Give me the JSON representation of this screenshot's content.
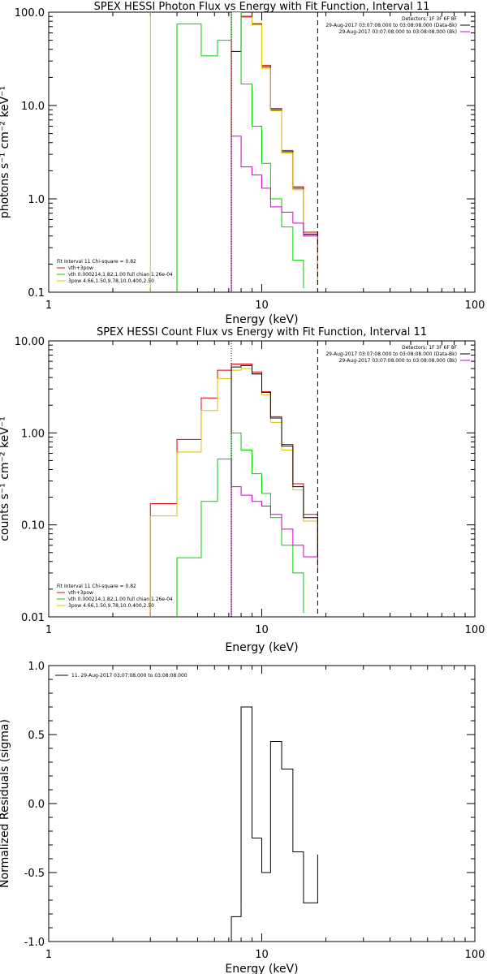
{
  "chart_data": [
    {
      "type": "line",
      "title": "SPEX HESSI Photon Flux vs Energy with Fit Function, Interval 11",
      "xlabel": "Energy (keV)",
      "ylabel": "photons s⁻¹ cm⁻² keV⁻¹",
      "xscale": "log",
      "yscale": "log",
      "xlim": [
        1,
        100
      ],
      "ylim": [
        0.1,
        100
      ],
      "xticks": [
        {
          "v": 1,
          "label": "1"
        },
        {
          "v": 10,
          "label": "10"
        },
        {
          "v": 100,
          "label": "100"
        }
      ],
      "yticks": [
        {
          "v": 0.1,
          "label": "0.1"
        },
        {
          "v": 1,
          "label": "1.0"
        },
        {
          "v": 10,
          "label": "10.0"
        },
        {
          "v": 100,
          "label": "100.0"
        }
      ],
      "vlines": [
        {
          "x": 7.2,
          "style": "dotted",
          "color": "#000000"
        },
        {
          "x": 18.3,
          "style": "dashed",
          "color": "#000000"
        }
      ],
      "legend_top": {
        "lines": [
          {
            "text": "Detectors: 1F 3F 6F 8F",
            "color": ""
          },
          {
            "text": "29-Aug-2017 03:07:08.000 to 03:08:08.000 (Data-Bk)",
            "color": "#000000"
          },
          {
            "text": "29-Aug-2017 03:07:08.000 to 03:08:08.000 (Bk)",
            "color": "#d000d0"
          }
        ]
      },
      "legend_bottom": {
        "lines": [
          {
            "text": "Fit Interval 11   Chi-square = 0.82",
            "color": ""
          },
          {
            "text": "vth+3pow",
            "color": "#e00000"
          },
          {
            "text": "vth 0.000214,1.82,1.00   full chian 1.26e-04",
            "color": "#00d000"
          },
          {
            "text": "3pow 4.66,1.50,9.78,10.0,400,2.50",
            "color": "#e0c000"
          }
        ]
      },
      "series": [
        {
          "color": "#000000",
          "edges": [
            7.2,
            8.0,
            9.0,
            10.0,
            11.0,
            12.4,
            14.0,
            15.7,
            18.3
          ],
          "values": [
            38,
            90,
            75,
            26,
            9.0,
            3.2,
            1.3,
            0.42,
            0.13
          ]
        },
        {
          "color": "#e00000",
          "edges": [
            7.2,
            8.0,
            9.0,
            10.0,
            11.0,
            12.4,
            14.0,
            15.7,
            18.3
          ],
          "values": [
            100,
            90,
            75,
            27,
            9.3,
            3.3,
            1.35,
            0.44,
            0.14
          ]
        },
        {
          "color": "#e0c000",
          "edges": [
            3.0,
            7.2,
            8.0,
            9.0,
            10.0,
            11.0,
            12.4,
            14.0,
            15.7,
            18.3
          ],
          "values": [
            200,
            100,
            88,
            73,
            25,
            8.8,
            3.1,
            1.25,
            0.41,
            0.12
          ]
        },
        {
          "color": "#00d000",
          "edges": [
            4.0,
            5.2,
            6.2,
            7.2,
            8.0,
            9.0,
            10.0,
            11.0,
            12.4,
            14.0,
            15.7
          ],
          "values": [
            75,
            34,
            50,
            120,
            17,
            6.0,
            2.4,
            1.0,
            0.5,
            0.22,
            0.11
          ]
        },
        {
          "color": "#d000d0",
          "edges": [
            7.2,
            8.0,
            9.0,
            10.0,
            11.0,
            12.4,
            14.0,
            15.7,
            18.3
          ],
          "values": [
            4.7,
            2.2,
            1.8,
            1.3,
            0.82,
            0.72,
            0.55,
            0.4,
            0.3
          ]
        }
      ]
    },
    {
      "type": "line",
      "title": "SPEX HESSI Count Flux vs Energy with Fit Function, Interval 11",
      "xlabel": "Energy (keV)",
      "ylabel": "counts s⁻¹ cm⁻² keV⁻¹",
      "xscale": "log",
      "yscale": "log",
      "xlim": [
        1,
        100
      ],
      "ylim": [
        0.01,
        10
      ],
      "xticks": [
        {
          "v": 1,
          "label": "1"
        },
        {
          "v": 10,
          "label": "10"
        },
        {
          "v": 100,
          "label": "100"
        }
      ],
      "yticks": [
        {
          "v": 0.01,
          "label": "0.01"
        },
        {
          "v": 0.1,
          "label": "0.10"
        },
        {
          "v": 1,
          "label": "1.00"
        },
        {
          "v": 10,
          "label": "10.00"
        }
      ],
      "vlines": [
        {
          "x": 7.2,
          "style": "dotted",
          "color": "#000000"
        },
        {
          "x": 18.3,
          "style": "dashed",
          "color": "#000000"
        }
      ],
      "legend_top": {
        "lines": [
          {
            "text": "Detectors: 1F 3F 6F 8F",
            "color": ""
          },
          {
            "text": "29-Aug-2017 03:07:08.000 to 03:08:08.000 (Data-Bk)",
            "color": "#000000"
          },
          {
            "text": "29-Aug-2017 03:07:08.000 to 03:08:08.000 (Bk)",
            "color": "#d000d0"
          }
        ]
      },
      "legend_bottom": {
        "lines": [
          {
            "text": "Fit Interval 11   Chi-square = 0.82",
            "color": ""
          },
          {
            "text": "vth+3pow",
            "color": "#e00000"
          },
          {
            "text": "vth 0.000214,1.82,1.00   full chian 1.26e-04",
            "color": "#00d000"
          },
          {
            "text": "3pow 4.66,1.50,9.78,10.0,400,2.50",
            "color": "#e0c000"
          }
        ]
      },
      "series": [
        {
          "color": "#e00000",
          "edges": [
            3.0,
            4.0,
            5.2,
            6.2,
            7.2,
            8.0,
            9.0,
            10.0,
            11.0,
            12.4,
            14.0,
            15.7,
            18.3
          ],
          "values": [
            0.17,
            0.85,
            2.4,
            4.8,
            5.6,
            5.6,
            4.6,
            2.8,
            1.5,
            0.75,
            0.28,
            0.13,
            0.045
          ]
        },
        {
          "color": "#e0c000",
          "edges": [
            3.0,
            4.0,
            5.2,
            6.2,
            7.2,
            8.0,
            9.0,
            10.0,
            11.0,
            12.4,
            14.0,
            15.7,
            18.3
          ],
          "values": [
            0.125,
            0.62,
            1.75,
            3.9,
            4.8,
            5.0,
            4.3,
            2.6,
            1.3,
            0.65,
            0.24,
            0.11,
            0.038
          ]
        },
        {
          "color": "#000000",
          "edges": [
            7.2,
            8.0,
            9.0,
            10.0,
            11.0,
            12.4,
            14.0,
            15.7,
            18.3
          ],
          "values": [
            5.2,
            5.4,
            4.4,
            2.75,
            1.45,
            0.72,
            0.26,
            0.12,
            0.04
          ]
        },
        {
          "color": "#00d000",
          "edges": [
            4.0,
            5.2,
            6.2,
            7.2,
            8.0,
            9.0,
            10.0,
            11.0,
            12.4,
            14.0,
            15.7
          ],
          "values": [
            0.044,
            0.18,
            0.52,
            1.0,
            0.65,
            0.36,
            0.22,
            0.12,
            0.06,
            0.03,
            0.011
          ]
        },
        {
          "color": "#d000d0",
          "edges": [
            7.2,
            8.0,
            9.0,
            10.0,
            11.0,
            12.4,
            14.0,
            15.7,
            18.3
          ],
          "values": [
            0.26,
            0.21,
            0.18,
            0.16,
            0.13,
            0.09,
            0.06,
            0.045,
            0.03
          ]
        }
      ]
    },
    {
      "type": "line",
      "title": "",
      "xlabel": "Energy (keV)",
      "ylabel": "Normalized Residuals (sigma)",
      "xscale": "log",
      "yscale": "linear",
      "xlim": [
        1,
        100
      ],
      "ylim": [
        -1.0,
        1.0
      ],
      "xticks": [
        {
          "v": 1,
          "label": "1"
        },
        {
          "v": 10,
          "label": "10"
        },
        {
          "v": 100,
          "label": "100"
        }
      ],
      "yticks": [
        {
          "v": -1.0,
          "label": "-1.0"
        },
        {
          "v": -0.5,
          "label": "-0.5"
        },
        {
          "v": 0.0,
          "label": "0.0"
        },
        {
          "v": 0.5,
          "label": "0.5"
        },
        {
          "v": 1.0,
          "label": "1.0"
        }
      ],
      "vlines": [],
      "legend_top": {
        "lines": [
          {
            "text": "11. 29-Aug-2017 03:07:08.000 to 03:08:08.000",
            "color": "#000000"
          }
        ]
      },
      "legend_bottom": {
        "lines": []
      },
      "series": [
        {
          "color": "#000000",
          "edges": [
            7.2,
            8.0,
            9.0,
            10.0,
            11.0,
            12.4,
            14.0,
            15.7,
            18.3
          ],
          "values": [
            -0.82,
            0.7,
            -0.25,
            -0.5,
            0.45,
            0.25,
            -0.35,
            -0.72,
            -0.37
          ]
        }
      ]
    }
  ]
}
